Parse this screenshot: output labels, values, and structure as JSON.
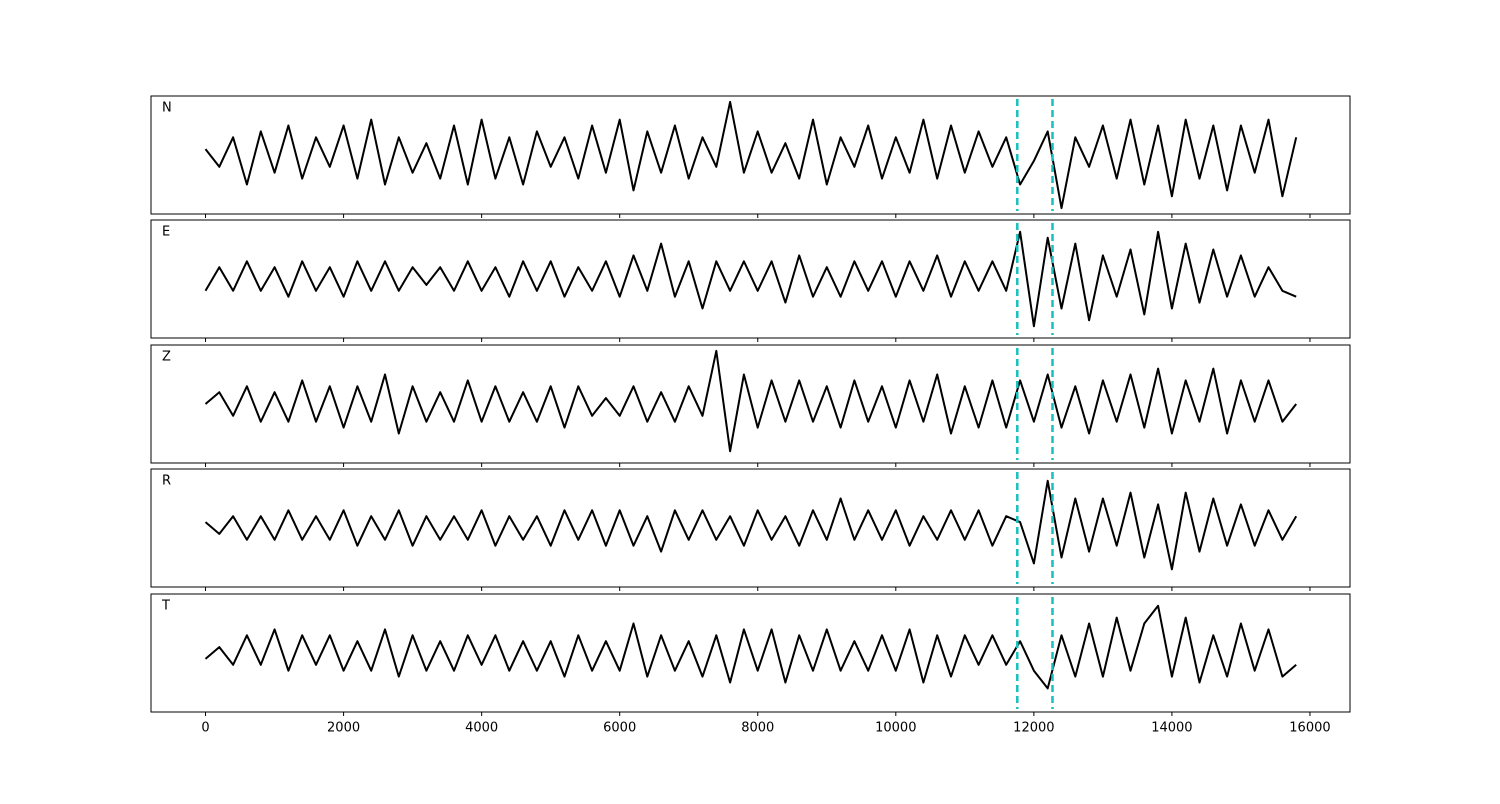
{
  "chart_data": {
    "type": "line",
    "x": [
      0,
      200,
      400,
      600,
      800,
      1000,
      1200,
      1400,
      1600,
      1800,
      2000,
      2200,
      2400,
      2600,
      2800,
      3000,
      3200,
      3400,
      3600,
      3800,
      4000,
      4200,
      4400,
      4600,
      4800,
      5000,
      5200,
      5400,
      5600,
      5800,
      6000,
      6200,
      6400,
      6600,
      6800,
      7000,
      7200,
      7400,
      7600,
      7800,
      8000,
      8200,
      8400,
      8600,
      8800,
      9000,
      9200,
      9400,
      9600,
      9800,
      10000,
      10200,
      10400,
      10600,
      10800,
      11000,
      11200,
      11400,
      11600,
      11800,
      12000,
      12200,
      12400,
      12600,
      12800,
      13000,
      13200,
      13400,
      13600,
      13800,
      14000,
      14200,
      14400,
      14600,
      14800,
      15000,
      15200,
      15400,
      15600,
      15800
    ],
    "series": [
      {
        "name": "N",
        "color": "#000000",
        "values": [
          0.1,
          -0.2,
          0.3,
          -0.5,
          0.4,
          -0.3,
          0.5,
          -0.4,
          0.3,
          -0.2,
          0.5,
          -0.4,
          0.6,
          -0.5,
          0.3,
          -0.3,
          0.2,
          -0.4,
          0.5,
          -0.5,
          0.6,
          -0.4,
          0.3,
          -0.5,
          0.4,
          -0.2,
          0.3,
          -0.4,
          0.5,
          -0.3,
          0.6,
          -0.6,
          0.4,
          -0.3,
          0.5,
          -0.4,
          0.3,
          -0.2,
          0.9,
          -0.3,
          0.4,
          -0.3,
          0.2,
          -0.4,
          0.6,
          -0.5,
          0.3,
          -0.2,
          0.5,
          -0.4,
          0.3,
          -0.3,
          0.6,
          -0.4,
          0.5,
          -0.3,
          0.4,
          -0.2,
          0.3,
          -0.5,
          -0.1,
          0.4,
          -0.9,
          0.3,
          -0.2,
          0.5,
          -0.4,
          0.6,
          -0.5,
          0.5,
          -0.7,
          0.6,
          -0.4,
          0.5,
          -0.6,
          0.5,
          -0.3,
          0.6,
          -0.7,
          0.3
        ]
      },
      {
        "name": "E",
        "color": "#000000",
        "values": [
          -0.2,
          0.2,
          -0.2,
          0.3,
          -0.2,
          0.2,
          -0.3,
          0.3,
          -0.2,
          0.2,
          -0.3,
          0.3,
          -0.2,
          0.3,
          -0.2,
          0.2,
          -0.1,
          0.2,
          -0.2,
          0.3,
          -0.2,
          0.2,
          -0.3,
          0.3,
          -0.2,
          0.3,
          -0.3,
          0.2,
          -0.2,
          0.3,
          -0.3,
          0.4,
          -0.2,
          0.6,
          -0.3,
          0.3,
          -0.5,
          0.3,
          -0.2,
          0.3,
          -0.2,
          0.3,
          -0.4,
          0.4,
          -0.3,
          0.2,
          -0.3,
          0.3,
          -0.2,
          0.3,
          -0.3,
          0.3,
          -0.2,
          0.4,
          -0.3,
          0.3,
          -0.2,
          0.3,
          -0.2,
          0.8,
          -0.8,
          0.7,
          -0.5,
          0.6,
          -0.7,
          0.4,
          -0.3,
          0.5,
          -0.6,
          0.8,
          -0.5,
          0.6,
          -0.4,
          0.5,
          -0.3,
          0.4,
          -0.3,
          0.2,
          -0.2,
          -0.3
        ]
      },
      {
        "name": "Z",
        "color": "#000000",
        "values": [
          0.0,
          0.2,
          -0.2,
          0.3,
          -0.3,
          0.2,
          -0.3,
          0.4,
          -0.3,
          0.3,
          -0.4,
          0.3,
          -0.3,
          0.5,
          -0.5,
          0.3,
          -0.3,
          0.2,
          -0.3,
          0.4,
          -0.3,
          0.3,
          -0.3,
          0.2,
          -0.3,
          0.3,
          -0.4,
          0.3,
          -0.2,
          0.1,
          -0.2,
          0.3,
          -0.3,
          0.2,
          -0.3,
          0.3,
          -0.2,
          0.9,
          -0.8,
          0.5,
          -0.4,
          0.4,
          -0.3,
          0.4,
          -0.3,
          0.3,
          -0.4,
          0.4,
          -0.3,
          0.3,
          -0.4,
          0.4,
          -0.3,
          0.5,
          -0.5,
          0.3,
          -0.4,
          0.4,
          -0.4,
          0.4,
          -0.3,
          0.5,
          -0.4,
          0.3,
          -0.5,
          0.4,
          -0.3,
          0.5,
          -0.4,
          0.6,
          -0.5,
          0.4,
          -0.3,
          0.6,
          -0.5,
          0.4,
          -0.3,
          0.4,
          -0.3,
          0.0
        ]
      },
      {
        "name": "R",
        "color": "#000000",
        "values": [
          0.1,
          -0.1,
          0.2,
          -0.2,
          0.2,
          -0.2,
          0.3,
          -0.2,
          0.2,
          -0.2,
          0.3,
          -0.3,
          0.2,
          -0.2,
          0.3,
          -0.3,
          0.2,
          -0.2,
          0.2,
          -0.2,
          0.3,
          -0.3,
          0.2,
          -0.2,
          0.2,
          -0.3,
          0.3,
          -0.2,
          0.3,
          -0.3,
          0.3,
          -0.3,
          0.2,
          -0.4,
          0.3,
          -0.2,
          0.3,
          -0.2,
          0.2,
          -0.3,
          0.3,
          -0.2,
          0.2,
          -0.3,
          0.3,
          -0.2,
          0.5,
          -0.2,
          0.3,
          -0.2,
          0.3,
          -0.3,
          0.2,
          -0.2,
          0.3,
          -0.2,
          0.3,
          -0.3,
          0.2,
          0.1,
          -0.6,
          0.8,
          -0.5,
          0.5,
          -0.4,
          0.5,
          -0.3,
          0.6,
          -0.5,
          0.4,
          -0.7,
          0.6,
          -0.4,
          0.5,
          -0.3,
          0.4,
          -0.3,
          0.3,
          -0.2,
          0.2
        ]
      },
      {
        "name": "T",
        "color": "#000000",
        "values": [
          -0.1,
          0.1,
          -0.2,
          0.3,
          -0.2,
          0.4,
          -0.3,
          0.3,
          -0.2,
          0.3,
          -0.3,
          0.2,
          -0.3,
          0.4,
          -0.4,
          0.3,
          -0.3,
          0.2,
          -0.3,
          0.3,
          -0.2,
          0.3,
          -0.3,
          0.2,
          -0.3,
          0.2,
          -0.4,
          0.3,
          -0.3,
          0.2,
          -0.3,
          0.5,
          -0.4,
          0.3,
          -0.3,
          0.2,
          -0.4,
          0.3,
          -0.5,
          0.4,
          -0.3,
          0.4,
          -0.5,
          0.3,
          -0.3,
          0.4,
          -0.3,
          0.2,
          -0.3,
          0.3,
          -0.3,
          0.4,
          -0.5,
          0.3,
          -0.4,
          0.3,
          -0.2,
          0.3,
          -0.2,
          0.2,
          -0.3,
          -0.6,
          0.3,
          -0.4,
          0.5,
          -0.4,
          0.6,
          -0.3,
          0.5,
          0.8,
          -0.4,
          0.6,
          -0.5,
          0.3,
          -0.4,
          0.5,
          -0.3,
          0.4,
          -0.4,
          -0.2
        ]
      }
    ],
    "markers": [
      11760,
      12270
    ],
    "marker_color": "#17bfbf",
    "xlim": [
      -790,
      16580
    ],
    "xticks": [
      0,
      2000,
      4000,
      6000,
      8000,
      10000,
      12000,
      14000,
      16000
    ],
    "ylim": [
      -1,
      1
    ]
  }
}
